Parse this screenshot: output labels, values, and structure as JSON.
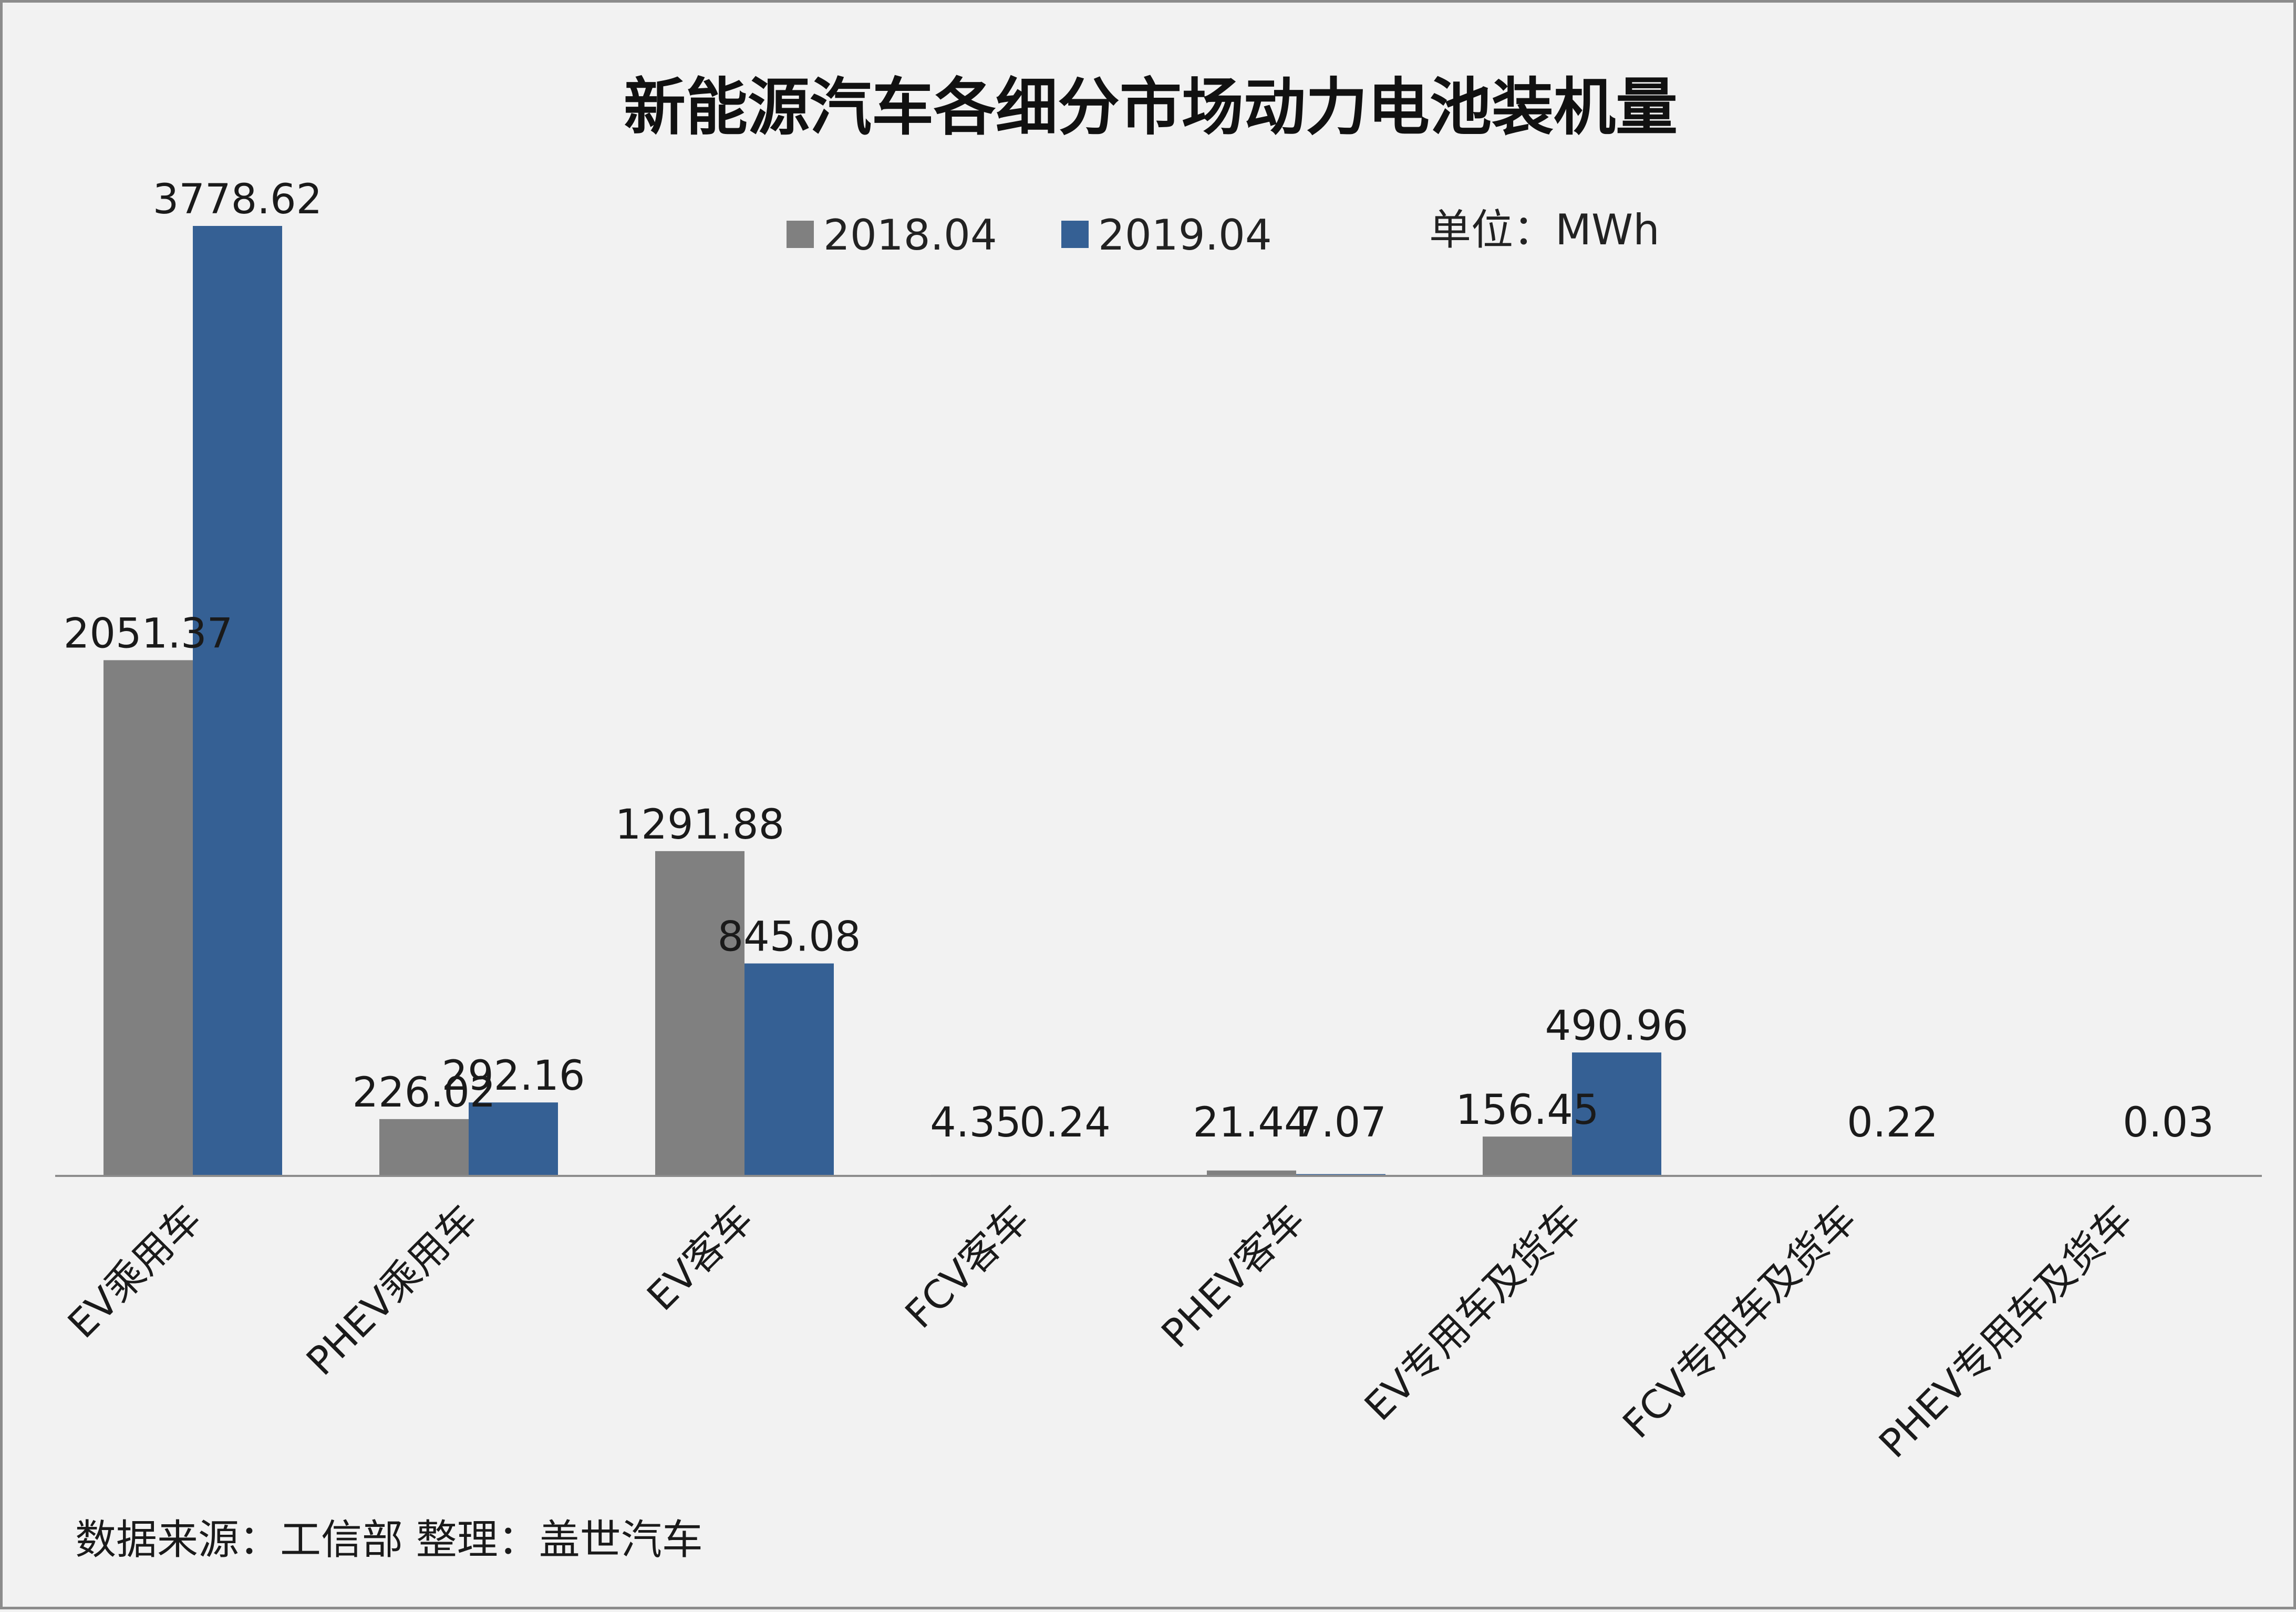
{
  "colors": {
    "series_2018": "#808080",
    "series_2019": "#356094",
    "axis": "#8c8c8c"
  },
  "chart_data": {
    "type": "bar",
    "title": "新能源汽车各细分市场动力电池装机量",
    "unit_label": "单位：MWh",
    "categories": [
      "EV乘用车",
      "PHEV乘用车",
      "EV客车",
      "FCV客车",
      "PHEV客车",
      "EV专用车及货车",
      "FCV专用车及货车",
      "PHEV专用车及货车"
    ],
    "series": [
      {
        "name": "2018.04",
        "values": [
          2051.37,
          226.02,
          1291.88,
          4.35,
          21.44,
          156.45,
          null,
          null
        ]
      },
      {
        "name": "2019.04",
        "values": [
          3778.62,
          292.16,
          845.08,
          0.24,
          7.07,
          490.96,
          0.22,
          0.03
        ]
      }
    ],
    "ylim": [
      0,
      3778.62
    ],
    "grid": false,
    "legend_position": "top-center"
  },
  "footer": {
    "source": "数据来源：工信部    整理：盖世汽车"
  }
}
